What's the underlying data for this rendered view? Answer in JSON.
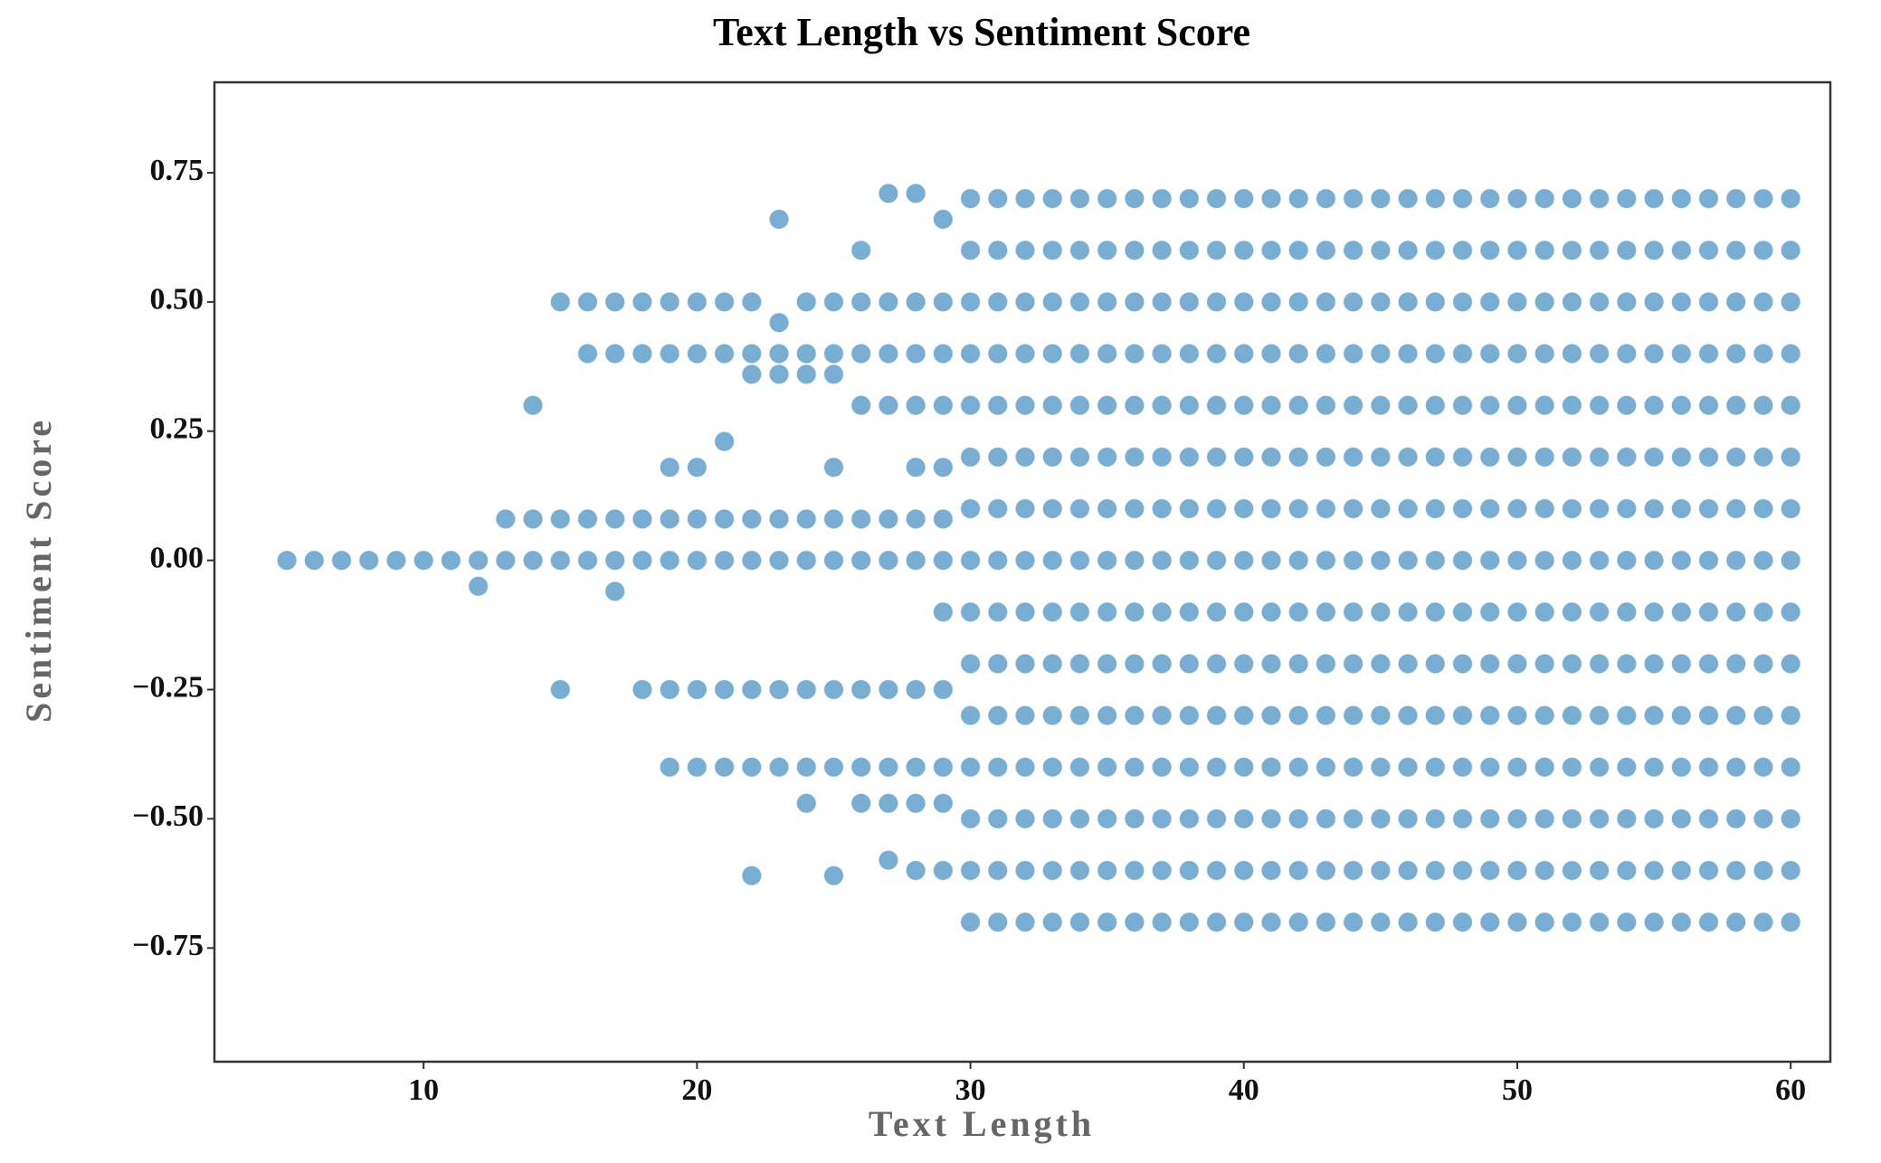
{
  "chart_data": {
    "type": "scatter",
    "title": "Text Length vs Sentiment Score",
    "x_label": "Text Length",
    "y_label": "Sentiment Score",
    "color": "#1f77b4",
    "xlim": [
      2.35,
      61.45
    ],
    "ylim": [
      -0.97,
      0.925
    ],
    "xticks": [
      10,
      20,
      30,
      40,
      50,
      60
    ],
    "yticks": [
      {
        "value": -0.75,
        "label": "−0.75"
      },
      {
        "value": -0.5,
        "label": "−0.50"
      },
      {
        "value": -0.25,
        "label": "−0.25"
      },
      {
        "value": 0,
        "label": "0.00"
      },
      {
        "value": 0.25,
        "label": "0.25"
      },
      {
        "value": 0.5,
        "label": "0.50"
      },
      {
        "value": 0.75,
        "label": "0.75"
      }
    ],
    "x": [
      5,
      6,
      7,
      8,
      9,
      10,
      11,
      12,
      12,
      13,
      13,
      14,
      14,
      14,
      15,
      15,
      15,
      15,
      16,
      16,
      16,
      16,
      17,
      17,
      17,
      17,
      17,
      18,
      18,
      18,
      18,
      18,
      19,
      19,
      19,
      19,
      19,
      19,
      19,
      20,
      20,
      20,
      20,
      20,
      20,
      20,
      21,
      21,
      21,
      21,
      21,
      21,
      21,
      22,
      22,
      22,
      22,
      22,
      22,
      22,
      22,
      23,
      23,
      23,
      23,
      23,
      23,
      23,
      23,
      24,
      24,
      24,
      24,
      24,
      24,
      24,
      24,
      25,
      25,
      25,
      25,
      25,
      25,
      25,
      25,
      25,
      26,
      26,
      26,
      26,
      26,
      26,
      26,
      26,
      26,
      27,
      27,
      27,
      27,
      27,
      27,
      27,
      27,
      27,
      27,
      28,
      28,
      28,
      28,
      28,
      28,
      28,
      28,
      28,
      28,
      28,
      29,
      29,
      29,
      29,
      29,
      29,
      29,
      29,
      29,
      29,
      29,
      29,
      30,
      30,
      30,
      30,
      30,
      30,
      30,
      30,
      30,
      30,
      30,
      30,
      30,
      30,
      30,
      31,
      31,
      31,
      31,
      31,
      31,
      31,
      31,
      31,
      31,
      31,
      31,
      31,
      31,
      31,
      32,
      32,
      32,
      32,
      32,
      32,
      32,
      32,
      32,
      32,
      32,
      32,
      32,
      32,
      32,
      33,
      33,
      33,
      33,
      33,
      33,
      33,
      33,
      33,
      33,
      33,
      33,
      33,
      33,
      33,
      34,
      34,
      34,
      34,
      34,
      34,
      34,
      34,
      34,
      34,
      34,
      34,
      34,
      34,
      34,
      35,
      35,
      35,
      35,
      35,
      35,
      35,
      35,
      35,
      35,
      35,
      35,
      35,
      35,
      35,
      36,
      36,
      36,
      36,
      36,
      36,
      36,
      36,
      36,
      36,
      36,
      36,
      36,
      36,
      36,
      37,
      37,
      37,
      37,
      37,
      37,
      37,
      37,
      37,
      37,
      37,
      37,
      37,
      37,
      37,
      38,
      38,
      38,
      38,
      38,
      38,
      38,
      38,
      38,
      38,
      38,
      38,
      38,
      38,
      38,
      39,
      39,
      39,
      39,
      39,
      39,
      39,
      39,
      39,
      39,
      39,
      39,
      39,
      39,
      39,
      40,
      40,
      40,
      40,
      40,
      40,
      40,
      40,
      40,
      40,
      40,
      40,
      40,
      40,
      40,
      41,
      41,
      41,
      41,
      41,
      41,
      41,
      41,
      41,
      41,
      41,
      41,
      41,
      41,
      41,
      42,
      42,
      42,
      42,
      42,
      42,
      42,
      42,
      42,
      42,
      42,
      42,
      42,
      42,
      42,
      43,
      43,
      43,
      43,
      43,
      43,
      43,
      43,
      43,
      43,
      43,
      43,
      43,
      43,
      43,
      44,
      44,
      44,
      44,
      44,
      44,
      44,
      44,
      44,
      44,
      44,
      44,
      44,
      44,
      44,
      45,
      45,
      45,
      45,
      45,
      45,
      45,
      45,
      45,
      45,
      45,
      45,
      45,
      45,
      45,
      46,
      46,
      46,
      46,
      46,
      46,
      46,
      46,
      46,
      46,
      46,
      46,
      46,
      46,
      46,
      47,
      47,
      47,
      47,
      47,
      47,
      47,
      47,
      47,
      47,
      47,
      47,
      47,
      47,
      47,
      48,
      48,
      48,
      48,
      48,
      48,
      48,
      48,
      48,
      48,
      48,
      48,
      48,
      48,
      48,
      49,
      49,
      49,
      49,
      49,
      49,
      49,
      49,
      49,
      49,
      49,
      49,
      49,
      49,
      49,
      50,
      50,
      50,
      50,
      50,
      50,
      50,
      50,
      50,
      50,
      50,
      50,
      50,
      50,
      50,
      51,
      51,
      51,
      51,
      51,
      51,
      51,
      51,
      51,
      51,
      51,
      51,
      51,
      51,
      51,
      52,
      52,
      52,
      52,
      52,
      52,
      52,
      52,
      52,
      52,
      52,
      52,
      52,
      52,
      52,
      53,
      53,
      53,
      53,
      53,
      53,
      53,
      53,
      53,
      53,
      53,
      53,
      53,
      53,
      53,
      54,
      54,
      54,
      54,
      54,
      54,
      54,
      54,
      54,
      54,
      54,
      54,
      54,
      54,
      54,
      55,
      55,
      55,
      55,
      55,
      55,
      55,
      55,
      55,
      55,
      55,
      55,
      55,
      55,
      55,
      56,
      56,
      56,
      56,
      56,
      56,
      56,
      56,
      56,
      56,
      56,
      56,
      56,
      56,
      56,
      57,
      57,
      57,
      57,
      57,
      57,
      57,
      57,
      57,
      57,
      57,
      57,
      57,
      57,
      57,
      58,
      58,
      58,
      58,
      58,
      58,
      58,
      58,
      58,
      58,
      58,
      58,
      58,
      58,
      58,
      59,
      59,
      59,
      59,
      59,
      59,
      59,
      59,
      59,
      59,
      59,
      59,
      59,
      59,
      59,
      60,
      60,
      60,
      60,
      60,
      60,
      60,
      60,
      60,
      60,
      60,
      60,
      60,
      60,
      60
    ],
    "y": [
      0,
      0,
      0,
      0,
      0,
      0,
      0,
      0,
      -0.05,
      0,
      0.08,
      0,
      0.3,
      0.08,
      0,
      0.08,
      0.5,
      -0.25,
      0,
      0.08,
      0.4,
      0.5,
      0,
      0.08,
      0.4,
      0.5,
      -0.06,
      0,
      0.08,
      0.4,
      0.5,
      -0.25,
      0,
      0.08,
      0.4,
      0.5,
      -0.25,
      -0.4,
      0.18,
      0,
      0.08,
      0.4,
      0.5,
      -0.25,
      -0.4,
      0.18,
      0,
      0.08,
      0.4,
      0.5,
      -0.25,
      -0.4,
      0.23,
      0,
      0.08,
      0.4,
      0.5,
      -0.25,
      -0.4,
      0.36,
      -0.61,
      0,
      0.08,
      0.4,
      0.46,
      -0.25,
      -0.4,
      0.36,
      0.66,
      0,
      0.08,
      0.4,
      0.5,
      -0.25,
      -0.4,
      0.36,
      -0.47,
      0,
      0.08,
      0.4,
      0.5,
      -0.25,
      -0.4,
      0.36,
      -0.61,
      0.18,
      0,
      0.08,
      0.4,
      0.5,
      -0.25,
      -0.4,
      0.3,
      -0.47,
      0.6,
      0,
      0.08,
      0.4,
      0.5,
      -0.25,
      -0.4,
      0.3,
      -0.47,
      0.71,
      -0.58,
      0,
      0.08,
      0.4,
      0.5,
      -0.25,
      -0.4,
      0.3,
      -0.47,
      0.71,
      -0.6,
      0.18,
      0,
      0.08,
      0.4,
      0.5,
      -0.25,
      -0.4,
      0.3,
      -0.47,
      0.66,
      -0.6,
      0.18,
      -0.1,
      -0.7,
      -0.6,
      -0.5,
      -0.4,
      -0.3,
      -0.2,
      -0.1,
      0,
      0.1,
      0.2,
      0.3,
      0.4,
      0.5,
      0.6,
      0.7,
      -0.7,
      -0.6,
      -0.5,
      -0.4,
      -0.3,
      -0.2,
      -0.1,
      0,
      0.1,
      0.2,
      0.3,
      0.4,
      0.5,
      0.6,
      0.7,
      -0.7,
      -0.6,
      -0.5,
      -0.4,
      -0.3,
      -0.2,
      -0.1,
      0,
      0.1,
      0.2,
      0.3,
      0.4,
      0.5,
      0.6,
      0.7,
      -0.7,
      -0.6,
      -0.5,
      -0.4,
      -0.3,
      -0.2,
      -0.1,
      0,
      0.1,
      0.2,
      0.3,
      0.4,
      0.5,
      0.6,
      0.7,
      -0.7,
      -0.6,
      -0.5,
      -0.4,
      -0.3,
      -0.2,
      -0.1,
      0,
      0.1,
      0.2,
      0.3,
      0.4,
      0.5,
      0.6,
      0.7,
      -0.7,
      -0.6,
      -0.5,
      -0.4,
      -0.3,
      -0.2,
      -0.1,
      0,
      0.1,
      0.2,
      0.3,
      0.4,
      0.5,
      0.6,
      0.7,
      -0.7,
      -0.6,
      -0.5,
      -0.4,
      -0.3,
      -0.2,
      -0.1,
      0,
      0.1,
      0.2,
      0.3,
      0.4,
      0.5,
      0.6,
      0.7,
      -0.7,
      -0.6,
      -0.5,
      -0.4,
      -0.3,
      -0.2,
      -0.1,
      0,
      0.1,
      0.2,
      0.3,
      0.4,
      0.5,
      0.6,
      0.7,
      -0.7,
      -0.6,
      -0.5,
      -0.4,
      -0.3,
      -0.2,
      -0.1,
      0,
      0.1,
      0.2,
      0.3,
      0.4,
      0.5,
      0.6,
      0.7,
      -0.7,
      -0.6,
      -0.5,
      -0.4,
      -0.3,
      -0.2,
      -0.1,
      0,
      0.1,
      0.2,
      0.3,
      0.4,
      0.5,
      0.6,
      0.7,
      -0.7,
      -0.6,
      -0.5,
      -0.4,
      -0.3,
      -0.2,
      -0.1,
      0,
      0.1,
      0.2,
      0.3,
      0.4,
      0.5,
      0.6,
      0.7,
      -0.7,
      -0.6,
      -0.5,
      -0.4,
      -0.3,
      -0.2,
      -0.1,
      0,
      0.1,
      0.2,
      0.3,
      0.4,
      0.5,
      0.6,
      0.7,
      -0.7,
      -0.6,
      -0.5,
      -0.4,
      -0.3,
      -0.2,
      -0.1,
      0,
      0.1,
      0.2,
      0.3,
      0.4,
      0.5,
      0.6,
      0.7,
      -0.7,
      -0.6,
      -0.5,
      -0.4,
      -0.3,
      -0.2,
      -0.1,
      0,
      0.1,
      0.2,
      0.3,
      0.4,
      0.5,
      0.6,
      0.7,
      -0.7,
      -0.6,
      -0.5,
      -0.4,
      -0.3,
      -0.2,
      -0.1,
      0,
      0.1,
      0.2,
      0.3,
      0.4,
      0.5,
      0.6,
      0.7,
      -0.7,
      -0.6,
      -0.5,
      -0.4,
      -0.3,
      -0.2,
      -0.1,
      0,
      0.1,
      0.2,
      0.3,
      0.4,
      0.5,
      0.6,
      0.7,
      -0.7,
      -0.6,
      -0.5,
      -0.4,
      -0.3,
      -0.2,
      -0.1,
      0,
      0.1,
      0.2,
      0.3,
      0.4,
      0.5,
      0.6,
      0.7,
      -0.7,
      -0.6,
      -0.5,
      -0.4,
      -0.3,
      -0.2,
      -0.1,
      0,
      0.1,
      0.2,
      0.3,
      0.4,
      0.5,
      0.6,
      0.7,
      -0.7,
      -0.6,
      -0.5,
      -0.4,
      -0.3,
      -0.2,
      -0.1,
      0,
      0.1,
      0.2,
      0.3,
      0.4,
      0.5,
      0.6,
      0.7,
      -0.7,
      -0.6,
      -0.5,
      -0.4,
      -0.3,
      -0.2,
      -0.1,
      0,
      0.1,
      0.2,
      0.3,
      0.4,
      0.5,
      0.6,
      0.7,
      -0.7,
      -0.6,
      -0.5,
      -0.4,
      -0.3,
      -0.2,
      -0.1,
      0,
      0.1,
      0.2,
      0.3,
      0.4,
      0.5,
      0.6,
      0.7,
      -0.7,
      -0.6,
      -0.5,
      -0.4,
      -0.3,
      -0.2,
      -0.1,
      0,
      0.1,
      0.2,
      0.3,
      0.4,
      0.5,
      0.6,
      0.7,
      -0.7,
      -0.6,
      -0.5,
      -0.4,
      -0.3,
      -0.2,
      -0.1,
      0,
      0.1,
      0.2,
      0.3,
      0.4,
      0.5,
      0.6,
      0.7,
      -0.7,
      -0.6,
      -0.5,
      -0.4,
      -0.3,
      -0.2,
      -0.1,
      0,
      0.1,
      0.2,
      0.3,
      0.4,
      0.5,
      0.6,
      0.7,
      -0.7,
      -0.6,
      -0.5,
      -0.4,
      -0.3,
      -0.2,
      -0.1,
      0,
      0.1,
      0.2,
      0.3,
      0.4,
      0.5,
      0.6,
      0.7,
      -0.7,
      -0.6,
      -0.5,
      -0.4,
      -0.3,
      -0.2,
      -0.1,
      0,
      0.1,
      0.2,
      0.3,
      0.4,
      0.5,
      0.6,
      0.7,
      -0.7,
      -0.6,
      -0.5,
      -0.4,
      -0.3,
      -0.2,
      -0.1,
      0,
      0.1,
      0.2,
      0.3,
      0.4,
      0.5,
      0.6,
      0.7,
      -0.7,
      -0.6,
      -0.5,
      -0.4,
      -0.3,
      -0.2,
      -0.1,
      0,
      0.1,
      0.2,
      0.3,
      0.4,
      0.5,
      0.6,
      0.7,
      -0.7,
      -0.6,
      -0.5,
      -0.4,
      -0.3,
      -0.2,
      -0.1,
      0,
      0.1,
      0.2,
      0.3,
      0.4,
      0.5,
      0.6,
      0.7,
      -0.7,
      -0.6,
      -0.5,
      -0.4,
      -0.3,
      -0.2,
      -0.1,
      0,
      0.1,
      0.2,
      0.3,
      0.4,
      0.5,
      0.6,
      0.7,
      -0.7,
      -0.6,
      -0.5,
      -0.4,
      -0.3,
      -0.2,
      -0.1,
      0,
      0.1,
      0.2,
      0.3,
      0.4,
      0.5,
      0.6,
      0.7
    ]
  }
}
